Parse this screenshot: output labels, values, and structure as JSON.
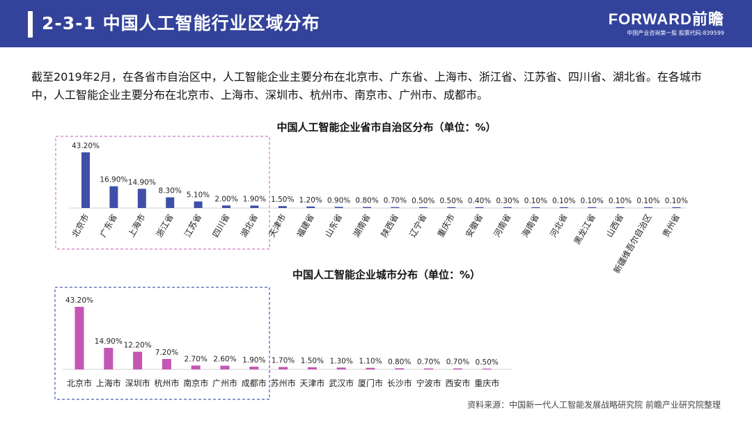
{
  "header": {
    "title": "2-3-1  中国人工智能行业区域分布",
    "brand_name": "FORWARD前瞻",
    "brand_sub": "中国产业咨询第一股  股票代码:839599"
  },
  "intro": "截至2019年2月，在各省市自治区中，人工智能企业主要分布在北京市、广东省、上海市、浙江省、江苏省、四川省、湖北省。在各城市中，人工智能企业主要分布在北京市、上海市、深圳市、杭州市、南京市、广州市、成都市。",
  "source": "资料来源：中国新一代人工智能发展战略研究院 前瞻产业研究院整理",
  "colors": {
    "header": "#33429a",
    "province_bar": "#3f4fa8",
    "city_bar": "#c457b4",
    "province_box": "#d07ac0",
    "city_box": "#4a5bb0"
  },
  "chart_data": [
    {
      "type": "bar",
      "title": "中国人工智能企业省市自治区分布（单位：%）",
      "categories": [
        "北京市",
        "广东省",
        "上海市",
        "浙江省",
        "江苏省",
        "四川省",
        "湖北省",
        "天津市",
        "福建省",
        "山东省",
        "湖南省",
        "陕西省",
        "辽宁省",
        "重庆市",
        "安徽省",
        "河南省",
        "海南省",
        "河北省",
        "黑龙江省",
        "山西省",
        "新疆维吾尔自治区",
        "贵州省"
      ],
      "values": [
        43.2,
        16.9,
        14.9,
        8.3,
        5.1,
        2.0,
        1.9,
        1.5,
        1.2,
        0.9,
        0.8,
        0.7,
        0.5,
        0.5,
        0.4,
        0.3,
        0.1,
        0.1,
        0.1,
        0.1,
        0.1,
        0.1
      ],
      "labels": [
        "43.20%",
        "16.90%",
        "14.90%",
        "8.30%",
        "5.10%",
        "2.00%",
        "1.90%",
        "1.50%",
        "1.20%",
        "0.90%",
        "0.80%",
        "0.70%",
        "0.50%",
        "0.50%",
        "0.40%",
        "0.30%",
        "0.10%",
        "0.10%",
        "0.10%",
        "0.10%",
        "0.10%",
        "0.10%"
      ],
      "highlight_count": 7,
      "xlabel": "",
      "ylabel": "",
      "grid": false
    },
    {
      "type": "bar",
      "title": "中国人工智能企业城市分布（单位：%）",
      "categories": [
        "北京市",
        "上海市",
        "深圳市",
        "杭州市",
        "南京市",
        "广州市",
        "成都市",
        "苏州市",
        "天津市",
        "武汉市",
        "厦门市",
        "长沙市",
        "宁波市",
        "西安市",
        "重庆市"
      ],
      "values": [
        43.2,
        14.9,
        12.2,
        7.2,
        2.7,
        2.6,
        1.9,
        1.7,
        1.5,
        1.3,
        1.1,
        0.8,
        0.7,
        0.7,
        0.5
      ],
      "labels": [
        "43.20%",
        "14.90%",
        "12.20%",
        "7.20%",
        "2.70%",
        "2.60%",
        "1.90%",
        "1.70%",
        "1.50%",
        "1.30%",
        "1.10%",
        "0.80%",
        "0.70%",
        "0.70%",
        "0.50%"
      ],
      "highlight_count": 7,
      "xlabel": "",
      "ylabel": "",
      "grid": false
    }
  ]
}
